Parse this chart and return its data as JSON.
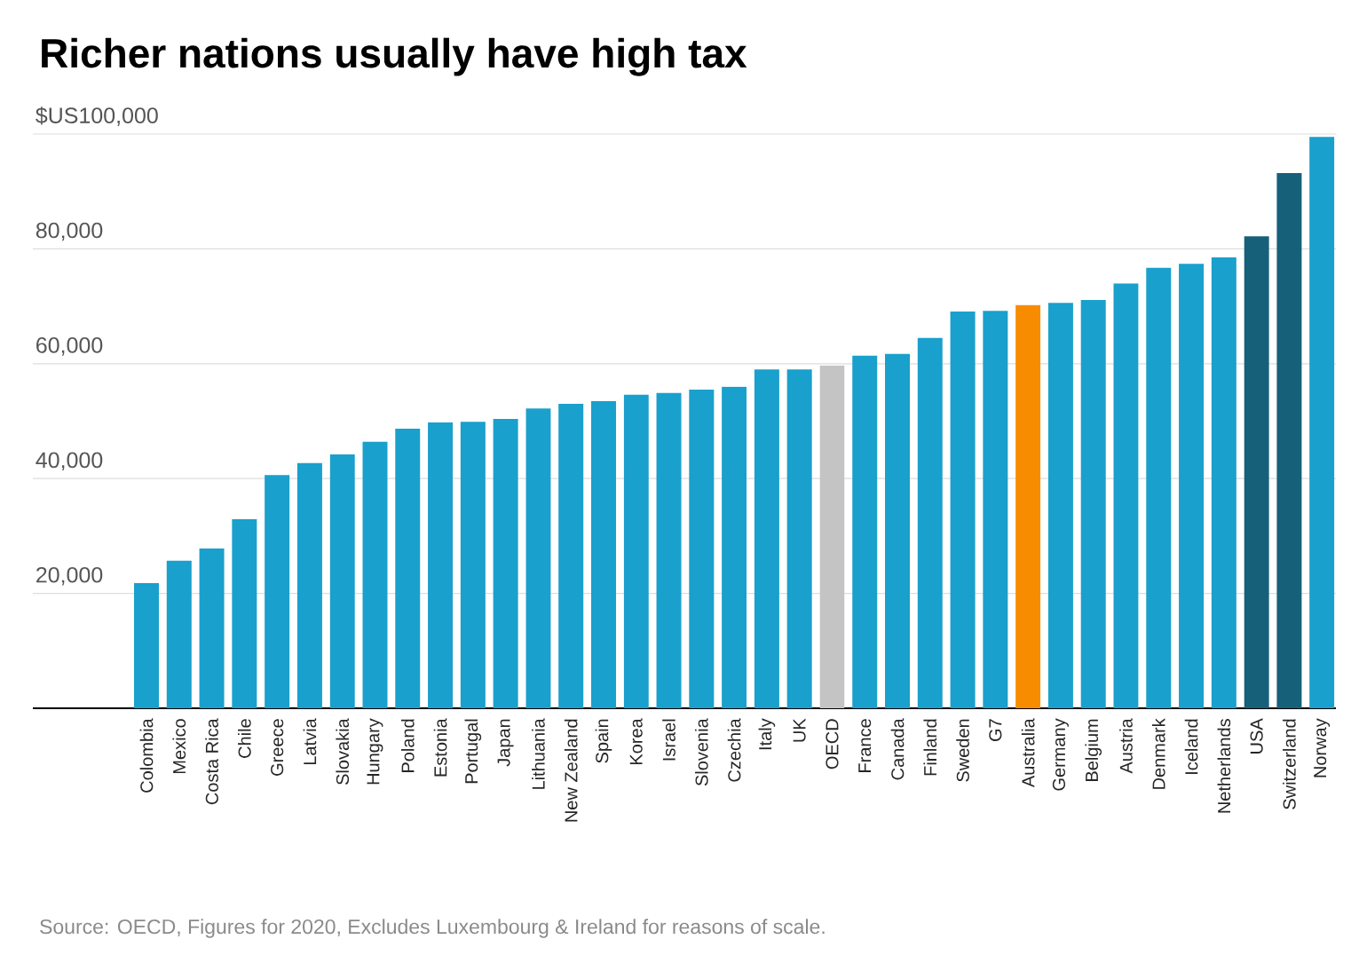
{
  "chart_data": {
    "type": "bar",
    "title": "Richer nations usually have high tax",
    "categories": [
      "Colombia",
      "Mexico",
      "Costa Rica",
      "Chile",
      "Greece",
      "Latvia",
      "Slovakia",
      "Hungary",
      "Poland",
      "Estonia",
      "Portugal",
      "Japan",
      "Lithuania",
      "New Zealand",
      "Spain",
      "Korea",
      "Israel",
      "Slovenia",
      "Czechia",
      "Italy",
      "UK",
      "OECD",
      "France",
      "Canada",
      "Finland",
      "Sweden",
      "G7",
      "Australia",
      "Germany",
      "Belgium",
      "Austria",
      "Denmark",
      "Iceland",
      "Netherlands",
      "USA",
      "Switzerland",
      "Norway"
    ],
    "values": [
      21800,
      25700,
      27800,
      32900,
      40600,
      42700,
      44200,
      46400,
      48700,
      49800,
      49900,
      50400,
      52200,
      53000,
      53500,
      54600,
      54900,
      55500,
      56000,
      59000,
      59000,
      59700,
      61400,
      61700,
      64500,
      69100,
      69200,
      70200,
      70600,
      71100,
      74000,
      76700,
      77400,
      78500,
      82200,
      93200,
      99500
    ],
    "colors": [
      "#1aa0cc",
      "#1aa0cc",
      "#1aa0cc",
      "#1aa0cc",
      "#1aa0cc",
      "#1aa0cc",
      "#1aa0cc",
      "#1aa0cc",
      "#1aa0cc",
      "#1aa0cc",
      "#1aa0cc",
      "#1aa0cc",
      "#1aa0cc",
      "#1aa0cc",
      "#1aa0cc",
      "#1aa0cc",
      "#1aa0cc",
      "#1aa0cc",
      "#1aa0cc",
      "#1aa0cc",
      "#1aa0cc",
      "#c4c4c4",
      "#1aa0cc",
      "#1aa0cc",
      "#1aa0cc",
      "#1aa0cc",
      "#1aa0cc",
      "#f78c00",
      "#1aa0cc",
      "#1aa0cc",
      "#1aa0cc",
      "#1aa0cc",
      "#1aa0cc",
      "#1aa0cc",
      "#17607a",
      "#17607a",
      "#1aa0cc"
    ],
    "ylim": [
      0,
      100000
    ],
    "yticks": [
      {
        "value": 20000,
        "label": "20,000"
      },
      {
        "value": 40000,
        "label": "40,000"
      },
      {
        "value": 60000,
        "label": "60,000"
      },
      {
        "value": 80000,
        "label": "80,000"
      },
      {
        "value": 100000,
        "label": "$US100,000"
      }
    ],
    "grid": "y",
    "annotations": [
      "Source: OECD, Figures for 2020, Excludes Luxembourg & Ireland for reasons of scale."
    ]
  }
}
